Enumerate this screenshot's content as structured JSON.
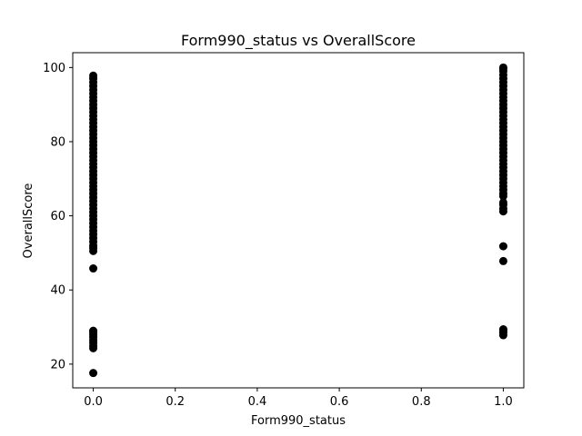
{
  "chart_data": {
    "type": "scatter",
    "title": "Form990_status vs OverallScore",
    "xlabel": "Form990_status",
    "ylabel": "OverallScore",
    "xlim": [
      -0.05,
      1.05
    ],
    "ylim": [
      13.6,
      104.0
    ],
    "xticks": [
      0.0,
      0.2,
      0.4,
      0.6,
      0.8,
      1.0
    ],
    "xtick_labels": [
      "0.0",
      "0.2",
      "0.4",
      "0.6",
      "0.8",
      "1.0"
    ],
    "yticks": [
      20,
      40,
      60,
      80,
      100
    ],
    "ytick_labels": [
      "20",
      "40",
      "60",
      "80",
      "100"
    ],
    "grid": false,
    "legend": false,
    "marker_color": "#000000",
    "series": [
      {
        "points": [
          [
            0,
            17.6
          ],
          [
            0,
            24.3
          ],
          [
            0,
            25.0
          ],
          [
            0,
            25.8
          ],
          [
            0,
            26.5
          ],
          [
            0,
            27.3
          ],
          [
            0,
            28.0
          ],
          [
            0,
            28.6
          ],
          [
            0,
            29.0
          ],
          [
            0,
            45.8
          ],
          [
            0,
            50.5
          ],
          [
            0,
            51.3
          ],
          [
            0,
            52.0
          ],
          [
            0,
            53.0
          ],
          [
            0,
            54.0
          ],
          [
            0,
            55.0
          ],
          [
            0,
            56.0
          ],
          [
            0,
            57.0
          ],
          [
            0,
            58.0
          ],
          [
            0,
            59.0
          ],
          [
            0,
            60.0
          ],
          [
            0,
            61.0
          ],
          [
            0,
            62.0
          ],
          [
            0,
            63.0
          ],
          [
            0,
            64.0
          ],
          [
            0,
            65.0
          ],
          [
            0,
            66.0
          ],
          [
            0,
            67.0
          ],
          [
            0,
            68.0
          ],
          [
            0,
            69.0
          ],
          [
            0,
            70.0
          ],
          [
            0,
            71.0
          ],
          [
            0,
            72.0
          ],
          [
            0,
            73.0
          ],
          [
            0,
            74.0
          ],
          [
            0,
            75.0
          ],
          [
            0,
            76.0
          ],
          [
            0,
            77.0
          ],
          [
            0,
            78.0
          ],
          [
            0,
            79.0
          ],
          [
            0,
            80.0
          ],
          [
            0,
            81.0
          ],
          [
            0,
            82.0
          ],
          [
            0,
            83.0
          ],
          [
            0,
            84.0
          ],
          [
            0,
            85.0
          ],
          [
            0,
            86.0
          ],
          [
            0,
            87.0
          ],
          [
            0,
            88.0
          ],
          [
            0,
            89.0
          ],
          [
            0,
            90.0
          ],
          [
            0,
            91.0
          ],
          [
            0,
            92.0
          ],
          [
            0,
            93.0
          ],
          [
            0,
            94.0
          ],
          [
            0,
            95.0
          ],
          [
            0,
            96.0
          ],
          [
            0,
            97.0
          ],
          [
            0,
            97.8
          ],
          [
            1,
            27.8
          ],
          [
            1,
            28.5
          ],
          [
            1,
            29.0
          ],
          [
            1,
            29.4
          ],
          [
            1,
            47.8
          ],
          [
            1,
            51.8
          ],
          [
            1,
            61.2
          ],
          [
            1,
            62.0
          ],
          [
            1,
            63.0
          ],
          [
            1,
            63.6
          ],
          [
            1,
            65.3
          ],
          [
            1,
            66.0
          ],
          [
            1,
            67.0
          ],
          [
            1,
            68.0
          ],
          [
            1,
            69.0
          ],
          [
            1,
            70.0
          ],
          [
            1,
            71.0
          ],
          [
            1,
            72.0
          ],
          [
            1,
            73.0
          ],
          [
            1,
            74.0
          ],
          [
            1,
            75.0
          ],
          [
            1,
            76.0
          ],
          [
            1,
            77.0
          ],
          [
            1,
            78.0
          ],
          [
            1,
            79.0
          ],
          [
            1,
            80.0
          ],
          [
            1,
            81.0
          ],
          [
            1,
            82.0
          ],
          [
            1,
            83.0
          ],
          [
            1,
            84.0
          ],
          [
            1,
            85.0
          ],
          [
            1,
            86.0
          ],
          [
            1,
            87.0
          ],
          [
            1,
            88.0
          ],
          [
            1,
            89.0
          ],
          [
            1,
            90.0
          ],
          [
            1,
            91.0
          ],
          [
            1,
            92.0
          ],
          [
            1,
            93.0
          ],
          [
            1,
            94.0
          ],
          [
            1,
            95.0
          ],
          [
            1,
            96.0
          ],
          [
            1,
            97.0
          ],
          [
            1,
            98.0
          ],
          [
            1,
            99.0
          ],
          [
            1,
            99.6
          ],
          [
            1,
            100.0
          ]
        ]
      }
    ]
  }
}
